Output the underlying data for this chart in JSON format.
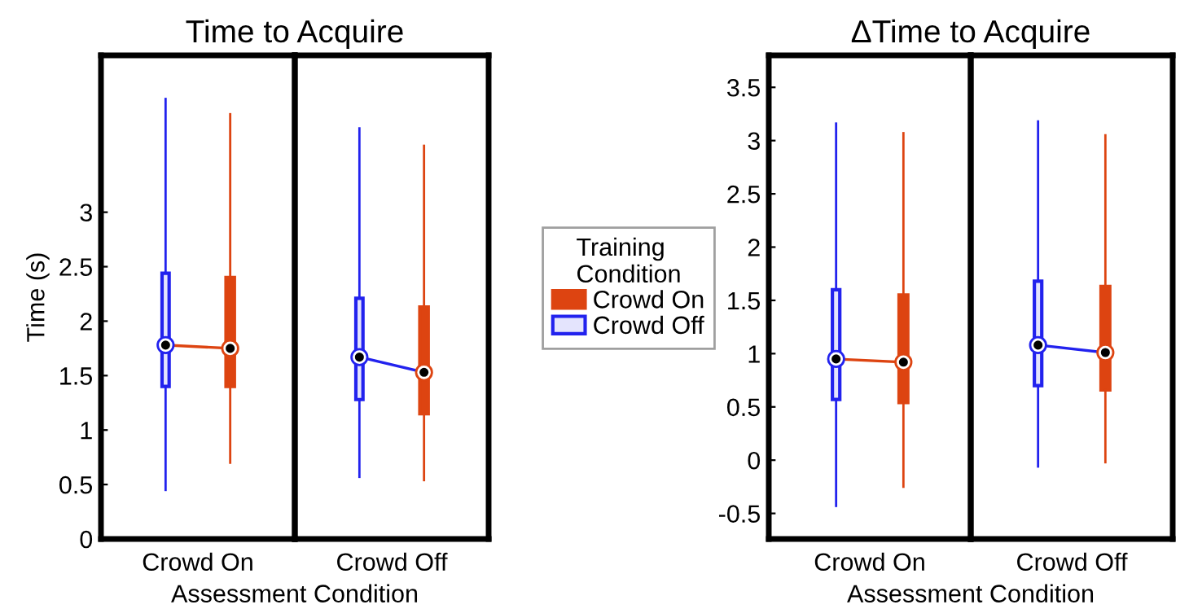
{
  "chart_data": [
    {
      "type": "box",
      "title": "Time to Acquire",
      "ylabel": "Time (s)",
      "xlabel": "Assessment Condition",
      "legend_title": "Training Condition",
      "legend": "right",
      "grid": false,
      "marker": "circle",
      "categories": [
        "Crowd On",
        "Crowd Off"
      ],
      "ylim": [
        0,
        4.44
      ],
      "yticks": [
        0,
        0.5,
        1,
        1.5,
        2,
        2.5,
        3
      ],
      "series": [
        {
          "name": "Crowd On",
          "color": "#dd4411",
          "boxes": [
            {
              "low": 0.7,
              "q1": 1.4,
              "median": 1.75,
              "q3": 2.4,
              "high": 3.9
            },
            {
              "low": 0.54,
              "q1": 1.15,
              "median": 1.53,
              "q3": 2.13,
              "high": 3.61
            }
          ]
        },
        {
          "name": "Crowd Off",
          "color": "#2222ee",
          "boxes": [
            {
              "low": 0.45,
              "q1": 1.4,
              "median": 1.78,
              "q3": 2.44,
              "high": 4.04
            },
            {
              "low": 0.57,
              "q1": 1.28,
              "median": 1.67,
              "q3": 2.21,
              "high": 3.77
            }
          ]
        }
      ]
    },
    {
      "type": "box",
      "title": "ΔTime to Acquire",
      "xlabel": "Assessment Condition",
      "legend": "left",
      "grid": false,
      "marker": "circle",
      "categories": [
        "Crowd On",
        "Crowd Off"
      ],
      "ylim": [
        -0.74,
        3.8
      ],
      "yticks": [
        -0.5,
        0,
        0.5,
        1,
        1.5,
        2,
        2.5,
        3,
        3.5
      ],
      "series": [
        {
          "name": "Crowd On",
          "color": "#dd4411",
          "boxes": [
            {
              "low": -0.25,
              "q1": 0.54,
              "median": 0.92,
              "q3": 1.55,
              "high": 3.07
            },
            {
              "low": -0.02,
              "q1": 0.66,
              "median": 1.01,
              "q3": 1.63,
              "high": 3.05
            }
          ]
        },
        {
          "name": "Crowd Off",
          "color": "#2222ee",
          "boxes": [
            {
              "low": -0.43,
              "q1": 0.57,
              "median": 0.95,
              "q3": 1.6,
              "high": 3.16
            },
            {
              "low": -0.06,
              "q1": 0.7,
              "median": 1.08,
              "q3": 1.68,
              "high": 3.18
            }
          ]
        }
      ]
    }
  ]
}
